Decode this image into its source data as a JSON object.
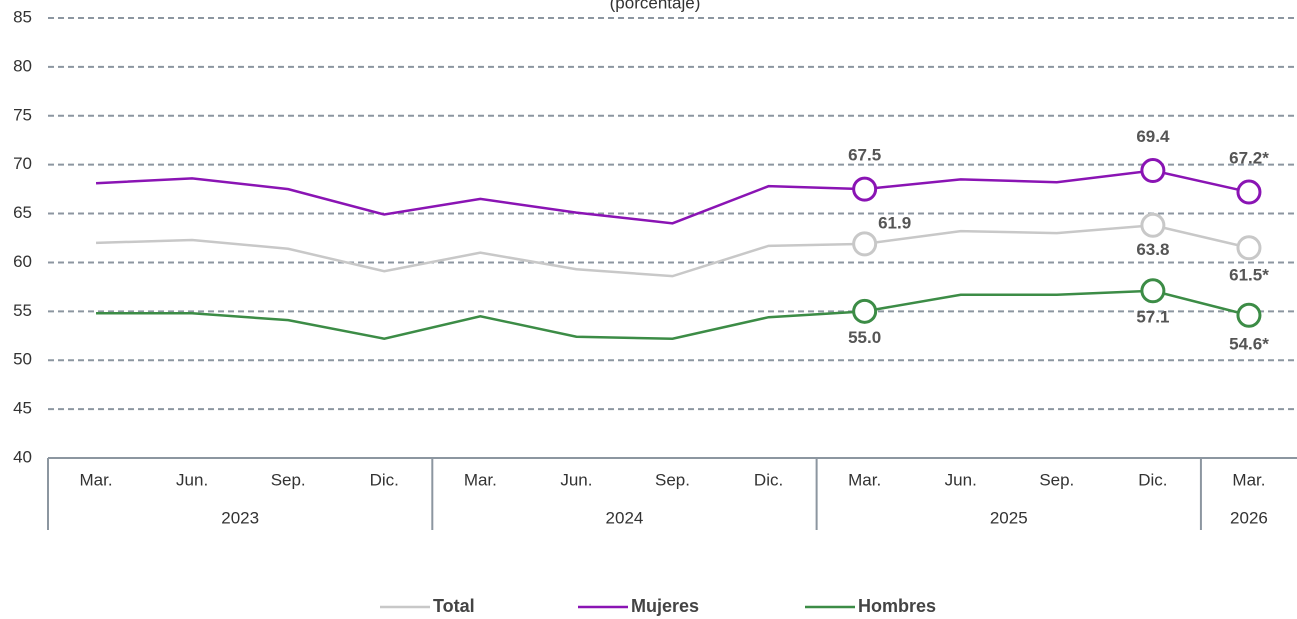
{
  "chart_data": {
    "type": "line",
    "subtitle": "(porcentaje)",
    "categories": [
      "Mar.",
      "Jun.",
      "Sep.",
      "Dic.",
      "Mar.",
      "Jun.",
      "Sep.",
      "Dic.",
      "Mar.",
      "Jun.",
      "Sep.",
      "Dic.",
      "Mar."
    ],
    "groups": [
      {
        "name": "2023",
        "count": 4
      },
      {
        "name": "2024",
        "count": 4
      },
      {
        "name": "2025",
        "count": 4
      },
      {
        "name": "2026",
        "count": 1
      }
    ],
    "series": [
      {
        "name": "Total",
        "color": "#c8c8c8",
        "values": [
          62.0,
          62.3,
          61.4,
          59.1,
          61.0,
          59.3,
          58.6,
          61.7,
          61.9,
          63.2,
          63.0,
          63.8,
          61.5
        ],
        "value_labels": [
          null,
          null,
          null,
          null,
          null,
          null,
          null,
          null,
          "61.9",
          null,
          null,
          "63.8",
          "61.5*"
        ]
      },
      {
        "name": "Mujeres",
        "color": "#8a14b4",
        "values": [
          68.1,
          68.6,
          67.5,
          64.9,
          66.5,
          65.1,
          64.0,
          67.8,
          67.5,
          68.5,
          68.2,
          69.4,
          67.2
        ],
        "value_labels": [
          null,
          null,
          null,
          null,
          null,
          null,
          null,
          null,
          "67.5",
          null,
          null,
          "69.4",
          "67.2*"
        ]
      },
      {
        "name": "Hombres",
        "color": "#3c8c46",
        "values": [
          54.8,
          54.8,
          54.1,
          52.2,
          54.5,
          52.4,
          52.2,
          54.4,
          55.0,
          56.7,
          56.7,
          57.1,
          54.6
        ],
        "value_labels": [
          null,
          null,
          null,
          null,
          null,
          null,
          null,
          null,
          "55.0",
          null,
          null,
          "57.1",
          "54.6*"
        ]
      }
    ],
    "ylim": [
      40,
      85
    ],
    "yticks": [
      40,
      45,
      50,
      55,
      60,
      65,
      70,
      75,
      80,
      85
    ],
    "grid": true,
    "legend": "bottom"
  }
}
